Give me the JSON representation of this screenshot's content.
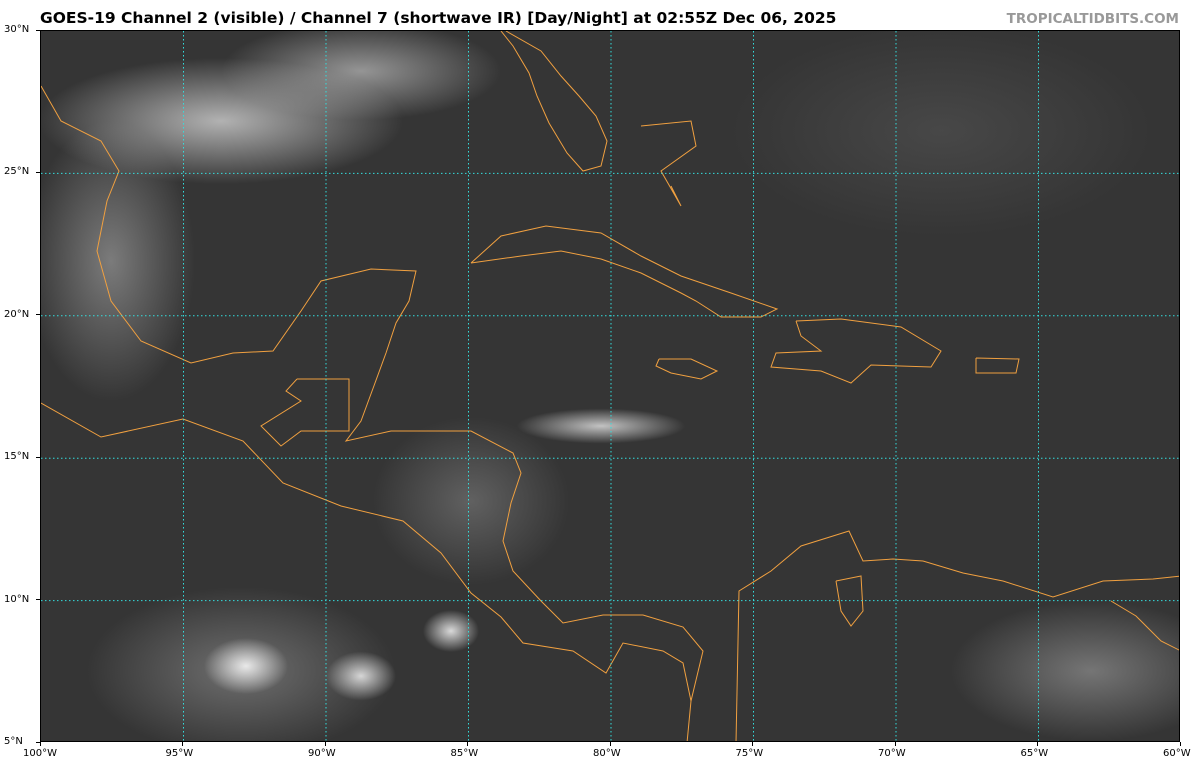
{
  "header": {
    "title": "GOES-19 Channel 2 (visible) / Channel 7 (shortwave IR) [Day/Night] at 02:55Z Dec 06, 2025",
    "brand": "TROPICALTIDBITS.COM"
  },
  "map": {
    "extent": {
      "lon": [
        -100,
        -60
      ],
      "lat": [
        5,
        30
      ]
    },
    "gridlines": true,
    "colors": {
      "grid": "#33dddd",
      "coastline": "#f0a040",
      "background": "#353535"
    },
    "lon_ticks": [
      {
        "value": -100,
        "label": "100°W"
      },
      {
        "value": -95,
        "label": "95°W"
      },
      {
        "value": -90,
        "label": "90°W"
      },
      {
        "value": -85,
        "label": "85°W"
      },
      {
        "value": -80,
        "label": "80°W"
      },
      {
        "value": -75,
        "label": "75°W"
      },
      {
        "value": -70,
        "label": "70°W"
      },
      {
        "value": -65,
        "label": "65°W"
      },
      {
        "value": -60,
        "label": "60°W"
      }
    ],
    "lat_ticks": [
      {
        "value": 30,
        "label": "30°N"
      },
      {
        "value": 25,
        "label": "25°N"
      },
      {
        "value": 20,
        "label": "20°N"
      },
      {
        "value": 15,
        "label": "15°N"
      },
      {
        "value": 10,
        "label": "10°N"
      },
      {
        "value": 5,
        "label": "5°N"
      }
    ]
  }
}
